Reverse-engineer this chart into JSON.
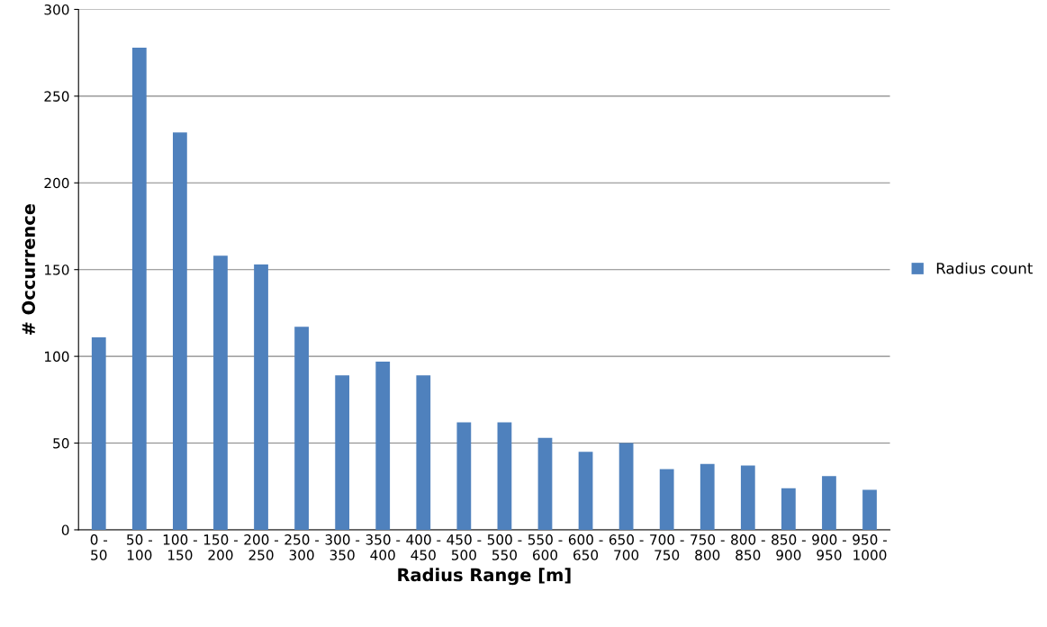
{
  "chart_data": {
    "type": "bar",
    "xlabel": "Radius Range [m]",
    "ylabel": "# Occurrence",
    "categories": [
      "0 - 50",
      "50 - 100",
      "100 - 150",
      "150 - 200",
      "200 - 250",
      "250 - 300",
      "300 - 350",
      "350 - 400",
      "400 - 450",
      "450 - 500",
      "500 - 550",
      "550 - 600",
      "600 - 650",
      "650 - 700",
      "700 - 750",
      "750 - 800",
      "800 - 850",
      "850 - 900",
      "900 - 950",
      "950 - 1000"
    ],
    "series": [
      {
        "name": "Radius count",
        "color": "#4f81bd",
        "values": [
          111,
          278,
          229,
          158,
          153,
          117,
          89,
          97,
          89,
          62,
          62,
          53,
          45,
          50,
          35,
          38,
          37,
          24,
          31,
          23
        ]
      }
    ],
    "ylim": [
      0,
      300
    ],
    "yticks": [
      0,
      50,
      100,
      150,
      200,
      250,
      300
    ],
    "grid": "y",
    "legend": "right"
  }
}
